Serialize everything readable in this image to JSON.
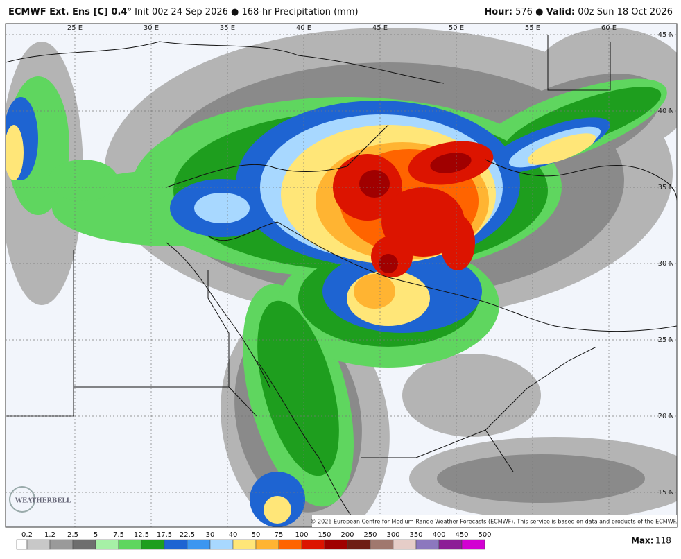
{
  "header": {
    "title_bold": "ECMWF Ext. Ens [C] 0.4°",
    "title_rest": "Init 00z 24 Sep 2026 ● 168-hr Precipitation (mm)",
    "hour_label": "Hour:",
    "hour": "576 ●",
    "valid_label": "Valid:",
    "valid": "00z Sun 18 Oct 2026"
  },
  "map": {
    "lon_labels": [
      "25 E",
      "30 E",
      "35 E",
      "40 E",
      "45 E",
      "50 E",
      "55 E",
      "60 E"
    ],
    "lat_labels": [
      "45 N",
      "40 N",
      "35 N",
      "30 N",
      "25 N",
      "20 N",
      "15 N"
    ],
    "copyright": "© 2026 European Centre for Medium-Range Weather Forecasts (ECMWF). This service is based on data and products of the ECMWF.",
    "logo": "WEATHERBELL"
  },
  "legend": {
    "labels": [
      0.2,
      1.2,
      2.5,
      5,
      7.5,
      12.5,
      17.5,
      22.5,
      30,
      40,
      50,
      75,
      100,
      150,
      200,
      250,
      300,
      350,
      400,
      450,
      500
    ],
    "colors": [
      "#ffffff",
      "#c8c8c8",
      "#9a9a9a",
      "#6e6e6e",
      "#a6f0a6",
      "#5fd65f",
      "#1e9e1e",
      "#1e64d2",
      "#3c96f0",
      "#a8d8ff",
      "#ffe678",
      "#ffb432",
      "#ff6400",
      "#dc1400",
      "#a00000",
      "#6e1e14",
      "#a0786e",
      "#e6cdc8",
      "#8c78be",
      "#8c1e96",
      "#d200d2"
    ]
  },
  "max": {
    "label": "Max:",
    "value": 118
  }
}
